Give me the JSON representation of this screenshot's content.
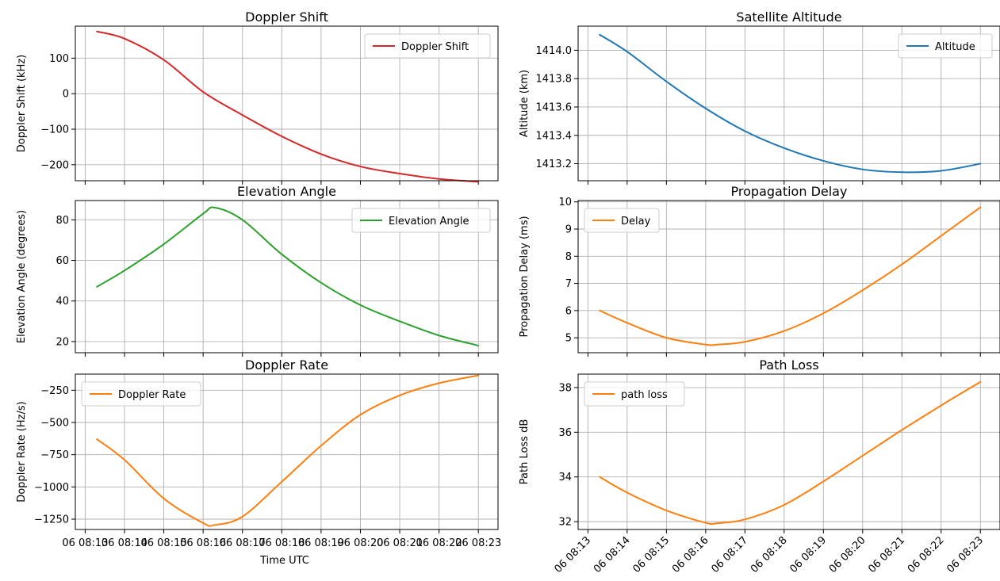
{
  "figure": {
    "x_axis_label": "Time UTC"
  },
  "chart_data": [
    {
      "id": "doppler-shift",
      "type": "line",
      "title": "Doppler Shift",
      "xlabel": "",
      "ylabel": "Doppler Shift (kHz)",
      "legend_loc": "top-right",
      "x": [
        13.3,
        14,
        15,
        16,
        17,
        18,
        19,
        20,
        21,
        22,
        23
      ],
      "xlim": [
        12.75,
        23.5
      ],
      "ylim": [
        -245,
        190
      ],
      "yticks": [
        -200,
        -100,
        0,
        100
      ],
      "ytick_labels": [
        "−200",
        "−100",
        "0",
        "100"
      ],
      "series": [
        {
          "name": "Doppler Shift",
          "color": "#d62728",
          "values": [
            175,
            155,
            95,
            5,
            -60,
            -120,
            -170,
            -205,
            -225,
            -240,
            -248
          ]
        }
      ]
    },
    {
      "id": "satellite-altitude",
      "type": "line",
      "title": "Satellite Altitude",
      "xlabel": "",
      "ylabel": "Altitude (km)",
      "legend_loc": "top-right",
      "x": [
        13.3,
        14,
        15,
        16,
        17,
        18,
        19,
        20,
        21,
        22,
        23
      ],
      "xlim": [
        12.75,
        23.5
      ],
      "ylim": [
        1413.08,
        1414.17
      ],
      "yticks": [
        1413.2,
        1413.4,
        1413.6,
        1413.8,
        1414.0
      ],
      "ytick_labels": [
        "1413.2",
        "1413.4",
        "1413.6",
        "1413.8",
        "1414.0"
      ],
      "series": [
        {
          "name": "Altitude",
          "color": "#1f77b4",
          "values": [
            1414.11,
            1413.99,
            1413.78,
            1413.59,
            1413.43,
            1413.31,
            1413.22,
            1413.16,
            1413.14,
            1413.15,
            1413.2
          ]
        }
      ]
    },
    {
      "id": "elevation-angle",
      "type": "line",
      "title": "Elevation Angle",
      "xlabel": "",
      "ylabel": "Elevation Angle (degrees)",
      "legend_loc": "top-right",
      "x": [
        13.3,
        14,
        15,
        16,
        16.3,
        17,
        18,
        19,
        20,
        21,
        22,
        23
      ],
      "xlim": [
        12.75,
        23.5
      ],
      "ylim": [
        14.5,
        89.5
      ],
      "yticks": [
        20,
        40,
        60,
        80
      ],
      "ytick_labels": [
        "20",
        "40",
        "60",
        "80"
      ],
      "series": [
        {
          "name": "Elevation Angle",
          "color": "#2ca02c",
          "values": [
            47,
            55,
            68,
            83,
            86,
            80,
            63,
            49,
            38,
            30,
            23,
            18
          ]
        }
      ]
    },
    {
      "id": "propagation-delay",
      "type": "line",
      "title": "Propagation Delay",
      "xlabel": "",
      "ylabel": "Propagation Delay (ms)",
      "legend_loc": "top-left",
      "x": [
        13.3,
        14,
        15,
        16,
        16.3,
        17,
        18,
        19,
        20,
        21,
        22,
        23
      ],
      "xlim": [
        12.75,
        23.5
      ],
      "ylim": [
        4.45,
        10.05
      ],
      "yticks": [
        5,
        6,
        7,
        8,
        9,
        10
      ],
      "ytick_labels": [
        "5",
        "6",
        "7",
        "8",
        "9",
        "10"
      ],
      "series": [
        {
          "name": "Delay",
          "color": "#ff7f0e",
          "values": [
            6.0,
            5.55,
            5.0,
            4.75,
            4.75,
            4.85,
            5.25,
            5.9,
            6.75,
            7.7,
            8.75,
            9.8
          ]
        }
      ]
    },
    {
      "id": "doppler-rate",
      "type": "line",
      "title": "Doppler Rate",
      "xlabel": "",
      "ylabel": "Doppler Rate (Hz/s)",
      "legend_loc": "top-left",
      "x": [
        13.3,
        14,
        15,
        16,
        16.3,
        17,
        18,
        19,
        20,
        21,
        22,
        23
      ],
      "xlim": [
        12.75,
        23.5
      ],
      "ylim": [
        -1330,
        -125
      ],
      "yticks": [
        -1250,
        -1000,
        -750,
        -500,
        -250
      ],
      "ytick_labels": [
        "−1250",
        "−1000",
        "−750",
        "−500",
        "−250"
      ],
      "series": [
        {
          "name": "Doppler Rate",
          "color": "#ff7f0e",
          "values": [
            -630,
            -790,
            -1090,
            -1280,
            -1295,
            -1230,
            -960,
            -680,
            -440,
            -290,
            -195,
            -135
          ]
        }
      ]
    },
    {
      "id": "path-loss",
      "type": "line",
      "title": "Path Loss",
      "xlabel": "",
      "ylabel": "Path Loss dB",
      "legend_loc": "top-left",
      "x": [
        13.3,
        14,
        15,
        16,
        16.3,
        17,
        18,
        19,
        20,
        21,
        22,
        23
      ],
      "xlim": [
        12.75,
        23.5
      ],
      "ylim": [
        31.65,
        38.6
      ],
      "yticks": [
        32,
        34,
        36,
        38
      ],
      "ytick_labels": [
        "32",
        "34",
        "36",
        "38"
      ],
      "series": [
        {
          "name": "path loss",
          "color": "#ff7f0e",
          "values": [
            34.0,
            33.3,
            32.5,
            31.95,
            31.93,
            32.1,
            32.75,
            33.8,
            34.95,
            36.1,
            37.2,
            38.25
          ]
        }
      ]
    }
  ],
  "x_axis": {
    "ticks": [
      13,
      14,
      15,
      16,
      17,
      18,
      19,
      20,
      21,
      22,
      23
    ],
    "left_bottom_labels": [
      "06 08:13",
      "06 08:14",
      "06 08:15",
      "06 08:16",
      "06 08:17",
      "06 08:18",
      "06 08:19",
      "06 08:20",
      "06 08:21",
      "06 08:22",
      "06 08:23"
    ],
    "left_bottom_overlap_labels": [
      "06 08:13",
      "06 08:14",
      "06 08:15",
      "06 08:16",
      "06 08:17",
      "06 08:18",
      "06 08:19",
      "06 08:20",
      "06 08:21",
      "06 08:22",
      "06 08:23"
    ],
    "right_bottom_labels": [
      "06 08:13",
      "06 08:14",
      "06 08:15",
      "06 08:16",
      "06 08:17",
      "06 08:18",
      "06 08:19",
      "06 08:20",
      "06 08:21",
      "06 08:22",
      "06 08:23"
    ]
  }
}
